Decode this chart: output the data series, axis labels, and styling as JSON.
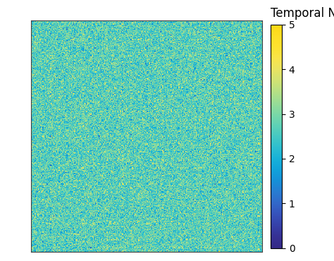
{
  "title": "Temporal Noise (DL)",
  "cmap": "YlGn",
  "vmin": 0,
  "vmax": 5,
  "colorbar_ticks": [
    0,
    1,
    2,
    3,
    4,
    5
  ],
  "noise_mean": 2.7,
  "noise_std": 0.55,
  "smooth_std": 0.5,
  "smooth_sigma": 25,
  "image_size": 300,
  "random_seed": 7,
  "background_color": "#ffffff",
  "title_fontsize": 12,
  "tick_fontsize": 10
}
